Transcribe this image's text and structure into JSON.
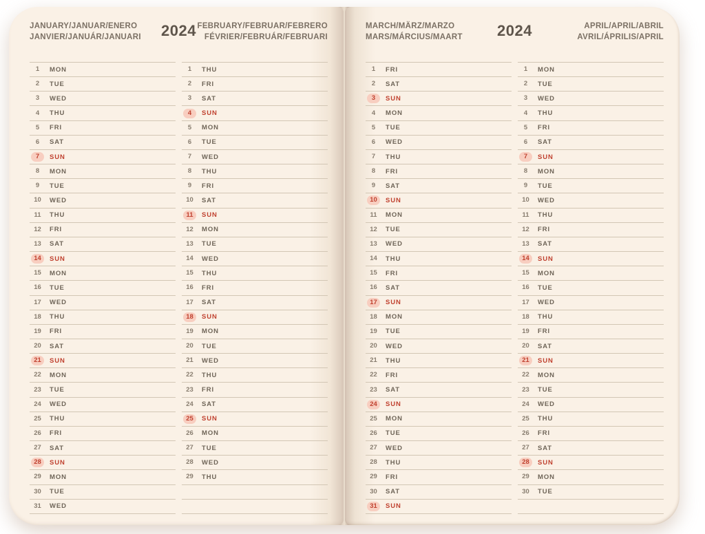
{
  "year": "2024",
  "sunday_label": "SUN",
  "colors": {
    "accent_red": "#c0412f",
    "sunday_pill": "#f8cec0",
    "page_background": "#faf1e6",
    "rule_line": "#d2c6b4"
  },
  "pages": [
    {
      "year_label": "2024",
      "months": [
        {
          "title_line1": "JANUARY/JANUAR/ENERO",
          "title_line2": "JANVIER/JANUÁR/JANUARI",
          "blank_rows": 0,
          "days": [
            [
              "1",
              "MON"
            ],
            [
              "2",
              "TUE"
            ],
            [
              "3",
              "WED"
            ],
            [
              "4",
              "THU"
            ],
            [
              "5",
              "FRI"
            ],
            [
              "6",
              "SAT"
            ],
            [
              "7",
              "SUN"
            ],
            [
              "8",
              "MON"
            ],
            [
              "9",
              "TUE"
            ],
            [
              "10",
              "WED"
            ],
            [
              "11",
              "THU"
            ],
            [
              "12",
              "FRI"
            ],
            [
              "13",
              "SAT"
            ],
            [
              "14",
              "SUN"
            ],
            [
              "15",
              "MON"
            ],
            [
              "16",
              "TUE"
            ],
            [
              "17",
              "WED"
            ],
            [
              "18",
              "THU"
            ],
            [
              "19",
              "FRI"
            ],
            [
              "20",
              "SAT"
            ],
            [
              "21",
              "SUN"
            ],
            [
              "22",
              "MON"
            ],
            [
              "23",
              "TUE"
            ],
            [
              "24",
              "WED"
            ],
            [
              "25",
              "THU"
            ],
            [
              "26",
              "FRI"
            ],
            [
              "27",
              "SAT"
            ],
            [
              "28",
              "SUN"
            ],
            [
              "29",
              "MON"
            ],
            [
              "30",
              "TUE"
            ],
            [
              "31",
              "WED"
            ]
          ]
        },
        {
          "title_line1": "FEBRUARY/FEBRUAR/FEBRERO",
          "title_line2": "FÉVRIER/FEBRUÁR/FEBRUARI",
          "blank_rows": 2,
          "days": [
            [
              "1",
              "THU"
            ],
            [
              "2",
              "FRI"
            ],
            [
              "3",
              "SAT"
            ],
            [
              "4",
              "SUN"
            ],
            [
              "5",
              "MON"
            ],
            [
              "6",
              "TUE"
            ],
            [
              "7",
              "WED"
            ],
            [
              "8",
              "THU"
            ],
            [
              "9",
              "FRI"
            ],
            [
              "10",
              "SAT"
            ],
            [
              "11",
              "SUN"
            ],
            [
              "12",
              "MON"
            ],
            [
              "13",
              "TUE"
            ],
            [
              "14",
              "WED"
            ],
            [
              "15",
              "THU"
            ],
            [
              "16",
              "FRI"
            ],
            [
              "17",
              "SAT"
            ],
            [
              "18",
              "SUN"
            ],
            [
              "19",
              "MON"
            ],
            [
              "20",
              "TUE"
            ],
            [
              "21",
              "WED"
            ],
            [
              "22",
              "THU"
            ],
            [
              "23",
              "FRI"
            ],
            [
              "24",
              "SAT"
            ],
            [
              "25",
              "SUN"
            ],
            [
              "26",
              "MON"
            ],
            [
              "27",
              "TUE"
            ],
            [
              "28",
              "WED"
            ],
            [
              "29",
              "THU"
            ]
          ]
        }
      ]
    },
    {
      "year_label": "2024",
      "months": [
        {
          "title_line1": "MARCH/MÄRZ/MARZO",
          "title_line2": "MARS/MÁRCIUS/MAART",
          "blank_rows": 0,
          "days": [
            [
              "1",
              "FRI"
            ],
            [
              "2",
              "SAT"
            ],
            [
              "3",
              "SUN"
            ],
            [
              "4",
              "MON"
            ],
            [
              "5",
              "TUE"
            ],
            [
              "6",
              "WED"
            ],
            [
              "7",
              "THU"
            ],
            [
              "8",
              "FRI"
            ],
            [
              "9",
              "SAT"
            ],
            [
              "10",
              "SUN"
            ],
            [
              "11",
              "MON"
            ],
            [
              "12",
              "TUE"
            ],
            [
              "13",
              "WED"
            ],
            [
              "14",
              "THU"
            ],
            [
              "15",
              "FRI"
            ],
            [
              "16",
              "SAT"
            ],
            [
              "17",
              "SUN"
            ],
            [
              "18",
              "MON"
            ],
            [
              "19",
              "TUE"
            ],
            [
              "20",
              "WED"
            ],
            [
              "21",
              "THU"
            ],
            [
              "22",
              "FRI"
            ],
            [
              "23",
              "SAT"
            ],
            [
              "24",
              "SUN"
            ],
            [
              "25",
              "MON"
            ],
            [
              "26",
              "TUE"
            ],
            [
              "27",
              "WED"
            ],
            [
              "28",
              "THU"
            ],
            [
              "29",
              "FRI"
            ],
            [
              "30",
              "SAT"
            ],
            [
              "31",
              "SUN"
            ]
          ]
        },
        {
          "title_line1": "APRIL/APRIL/ABRIL",
          "title_line2": "AVRIL/ÁPRILIS/APRIL",
          "blank_rows": 1,
          "days": [
            [
              "1",
              "MON"
            ],
            [
              "2",
              "TUE"
            ],
            [
              "3",
              "WED"
            ],
            [
              "4",
              "THU"
            ],
            [
              "5",
              "FRI"
            ],
            [
              "6",
              "SAT"
            ],
            [
              "7",
              "SUN"
            ],
            [
              "8",
              "MON"
            ],
            [
              "9",
              "TUE"
            ],
            [
              "10",
              "WED"
            ],
            [
              "11",
              "THU"
            ],
            [
              "12",
              "FRI"
            ],
            [
              "13",
              "SAT"
            ],
            [
              "14",
              "SUN"
            ],
            [
              "15",
              "MON"
            ],
            [
              "16",
              "TUE"
            ],
            [
              "17",
              "WED"
            ],
            [
              "18",
              "THU"
            ],
            [
              "19",
              "FRI"
            ],
            [
              "20",
              "SAT"
            ],
            [
              "21",
              "SUN"
            ],
            [
              "22",
              "MON"
            ],
            [
              "23",
              "TUE"
            ],
            [
              "24",
              "WED"
            ],
            [
              "25",
              "THU"
            ],
            [
              "26",
              "FRI"
            ],
            [
              "27",
              "SAT"
            ],
            [
              "28",
              "SUN"
            ],
            [
              "29",
              "MON"
            ],
            [
              "30",
              "TUE"
            ]
          ]
        }
      ]
    }
  ]
}
